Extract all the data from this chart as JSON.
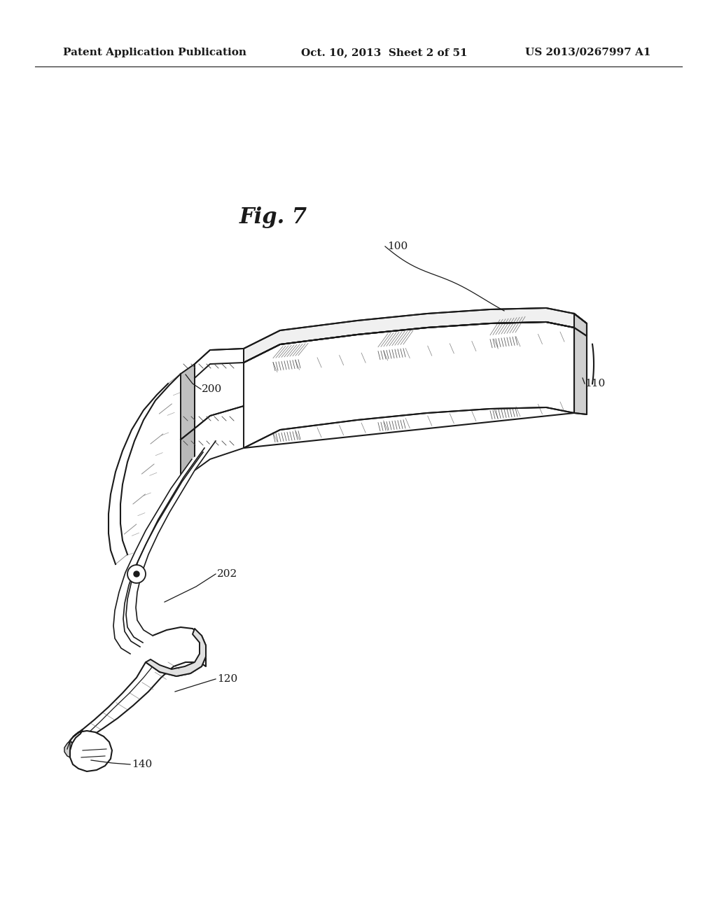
{
  "background_color": "#ffffff",
  "header_left": "Patent Application Publication",
  "header_middle": "Oct. 10, 2013  Sheet 2 of 51",
  "header_right": "US 2013/0267997 A1",
  "figure_label": "Fig. 7",
  "header_fontsize": 11,
  "figure_label_fontsize": 22,
  "label_fontsize": 11,
  "color_main": "#1a1a1a",
  "color_light": "#e8e8e8",
  "color_mid": "#cccccc"
}
